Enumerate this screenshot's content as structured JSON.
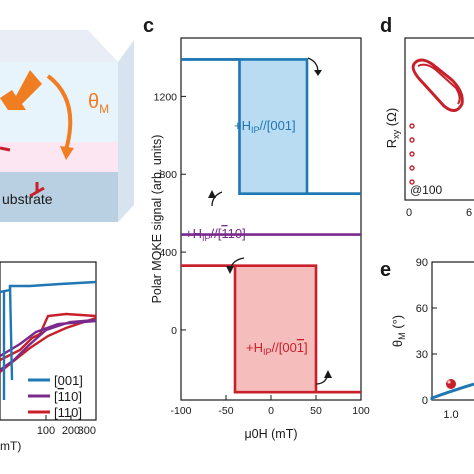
{
  "panels": {
    "c": {
      "letter": "c",
      "chart_data": {
        "type": "line",
        "xlabel": "μ0H (mT)",
        "ylabel": "Polar MOKE signal (arb. units)",
        "xlim": [
          -100,
          100
        ],
        "ylim": [
          -360,
          1500
        ],
        "xticks": [
          -100,
          -50,
          0,
          50,
          100
        ],
        "yticks": [
          0,
          400,
          800,
          1200
        ],
        "x_tick_labels": [
          "-100",
          "-50",
          "0",
          "50",
          "100"
        ],
        "y_tick_labels": [
          "0",
          "400",
          "800",
          "1200"
        ],
        "grid": false,
        "series": [
          {
            "name": "+HIP//[001]",
            "color": "#1f77b4",
            "fill": "#b9dcf2",
            "loop": {
              "x_left": -35,
              "x_right": 40,
              "y_top": 1390,
              "y_bottom": 700,
              "x_min": -100,
              "x_max": 100
            }
          },
          {
            "name": "+HIP//[-110]",
            "color": "#7a2a8c",
            "line": {
              "x": [
                -100,
                100
              ],
              "y": [
                490,
                490
              ]
            }
          },
          {
            "name": "+HIP//[00-1]",
            "color": "#c8202b",
            "fill": "#f6bdbd",
            "loop": {
              "x_left": -40,
              "x_right": 50,
              "y_top": 330,
              "y_bottom": -320,
              "x_min": -100,
              "x_max": 100
            }
          }
        ],
        "labels": {
          "s001": {
            "pre": "+H",
            "sub": "IP",
            "post": "//[001]"
          },
          "s110": {
            "pre": "+H",
            "sub": "IP",
            "post": "//[",
            "bar": "1",
            "post2": "10]"
          },
          "s001bar": {
            "pre": "+H",
            "sub": "IP",
            "post": "//[00",
            "bar": "1",
            "post2": "]"
          }
        }
      }
    },
    "a": {
      "theta_symbol": "θ",
      "theta_sub": "M",
      "substrate_text": "ubstrate"
    },
    "b": {
      "chart_data": {
        "type": "line",
        "xlim": [
          -100,
          300
        ],
        "xticks": [
          100,
          200,
          300
        ],
        "x_tick_labels": [
          "100",
          "200",
          "300"
        ],
        "xlabel_fragment": "mT)",
        "legend_placement": "bottom-right",
        "series": [
          {
            "name": "[001]",
            "color": "#1f77b4"
          },
          {
            "name": "[110]",
            "name_bar": "1",
            "name_rest": "10",
            "color": "#7a2a8c"
          },
          {
            "name": "[110]",
            "color": "#c8202b"
          }
        ]
      }
    },
    "d": {
      "letter": "d",
      "chart_data": {
        "type": "line",
        "ylabel_main": "R",
        "ylabel_sub": "xy",
        "ylabel_unit": "(Ω)",
        "x_tick_labels": [
          "0",
          "6"
        ],
        "annotation": "@100",
        "series": [
          {
            "color": "#c8202b"
          }
        ]
      }
    },
    "e": {
      "letter": "e",
      "chart_data": {
        "type": "scatter",
        "ylabel_main": "θ",
        "ylabel_sub": "M",
        "ylabel_unit": "(°)",
        "ylim": [
          0,
          90
        ],
        "y_tick_labels": [
          "90",
          "60",
          "30",
          "0"
        ],
        "x_tick_labels": [
          "1.0"
        ],
        "series": [
          {
            "color": "#1f77b4"
          }
        ],
        "points": [
          {
            "color": "#c8202b"
          }
        ]
      }
    }
  }
}
